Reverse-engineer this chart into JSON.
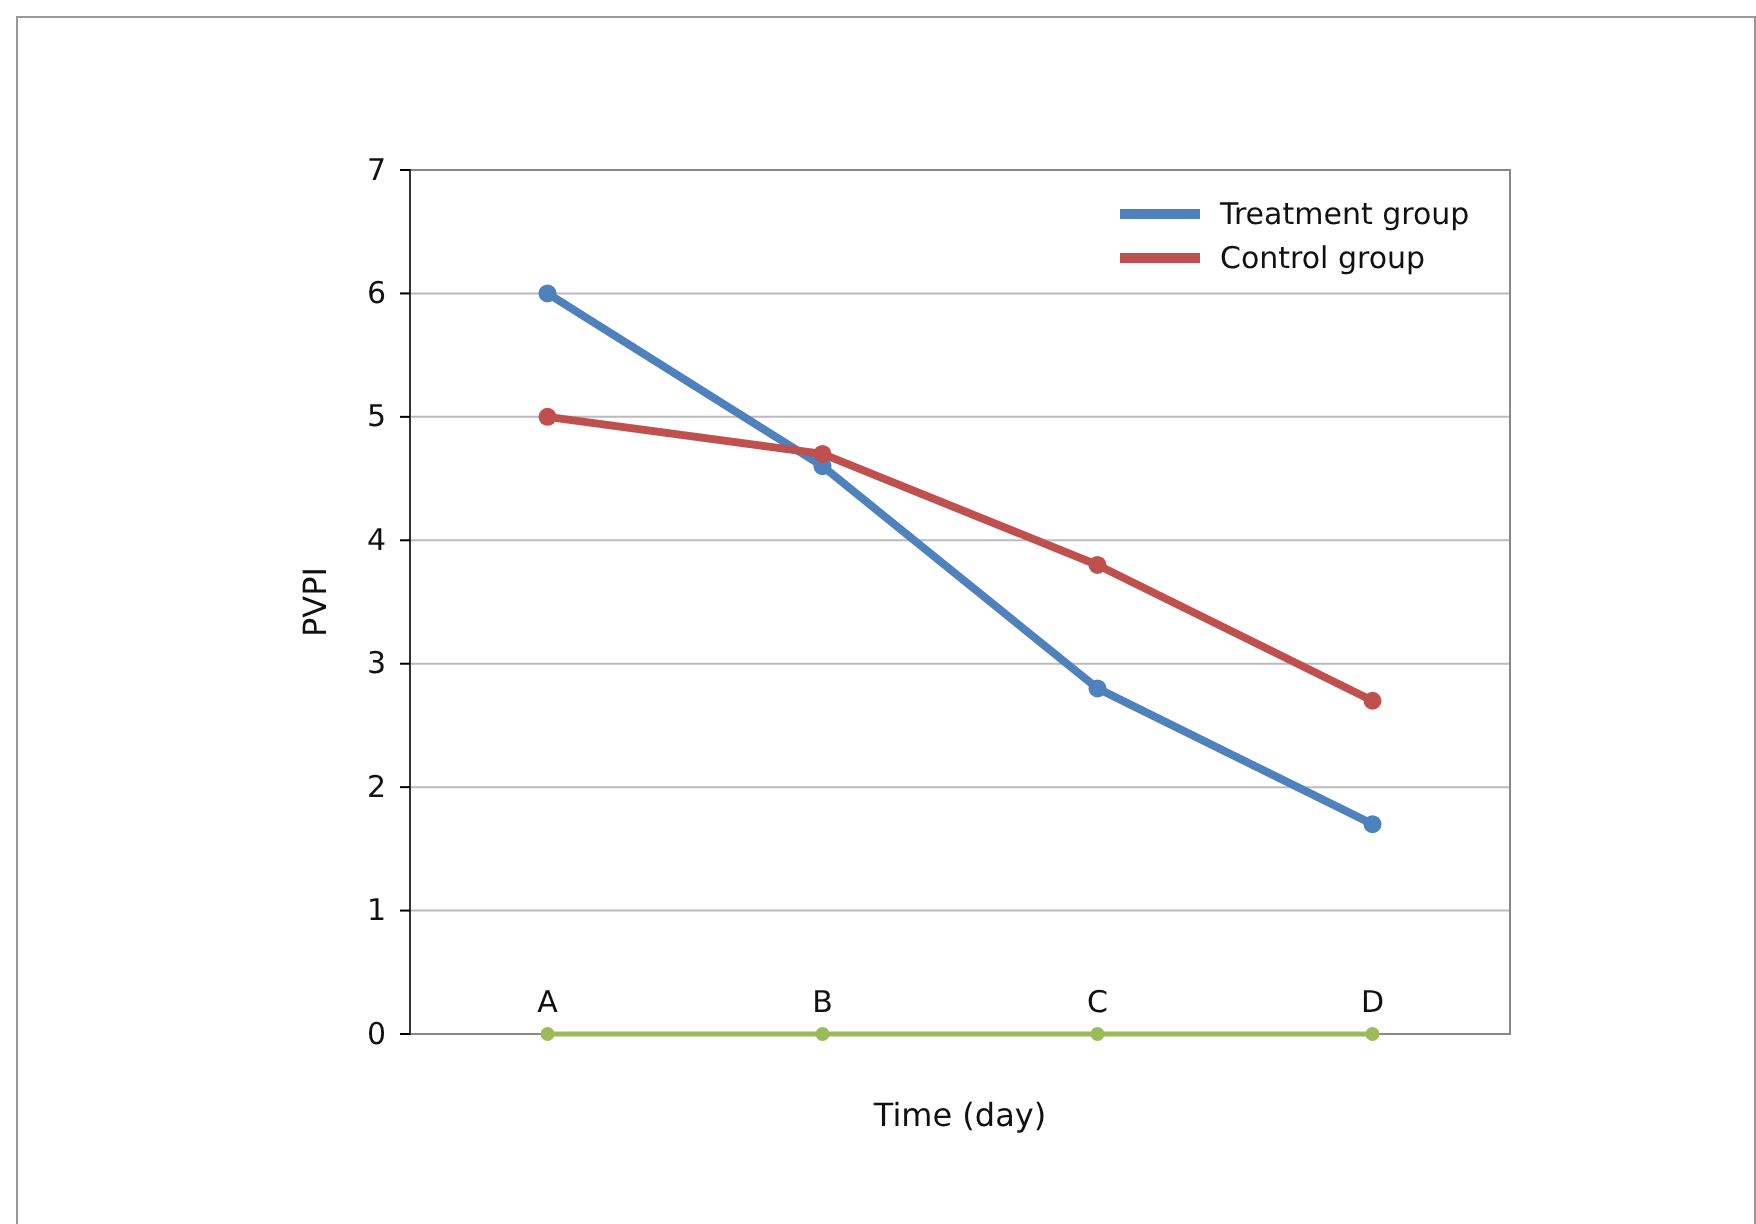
{
  "chart_data": {
    "type": "line",
    "xlabel": "Time (day)",
    "ylabel": "PVPI",
    "categories": [
      "A",
      "B",
      "C",
      "D"
    ],
    "series": [
      {
        "name": "Treatment group",
        "color": "#4f81bd",
        "values": [
          6.0,
          4.6,
          2.8,
          1.7
        ]
      },
      {
        "name": "Control group",
        "color": "#c0504d",
        "values": [
          5.0,
          4.7,
          3.8,
          2.7
        ]
      },
      {
        "color": "#9bbb59",
        "values": [
          0,
          0,
          0,
          0
        ]
      }
    ],
    "ylim": [
      0,
      7
    ],
    "yticks": [
      0,
      1,
      2,
      3,
      4,
      5,
      6,
      7
    ],
    "grid": "y",
    "legend": "top right",
    "marker": "circle",
    "line_style": "solid"
  }
}
